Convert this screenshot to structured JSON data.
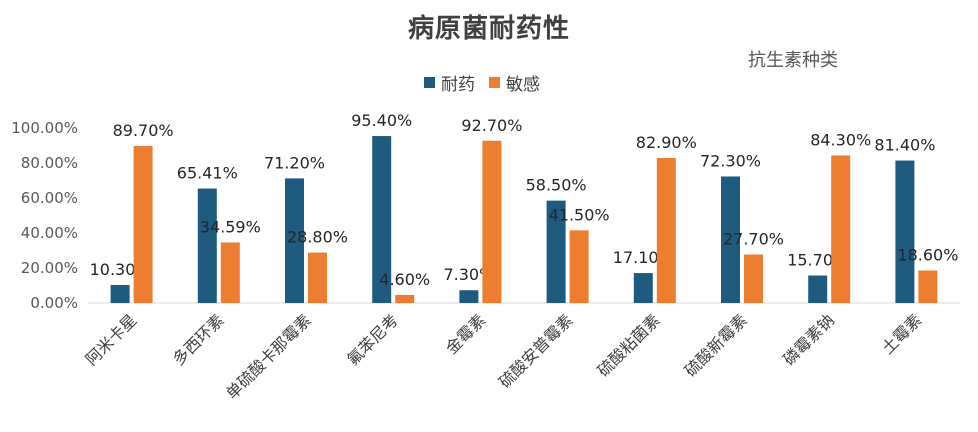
{
  "chart_data": {
    "type": "bar",
    "title": "病原菌耐药性",
    "subtitle": "抗生素种类",
    "categories": [
      "阿米卡星",
      "多西环素",
      "单硫酸卡那霉素",
      "氟苯尼考",
      "金霉素",
      "硫酸安普霉素",
      "硫酸粘菌素",
      "硫酸新霉素",
      "磷霉素钠",
      "土霉素"
    ],
    "series": [
      {
        "name": "耐药",
        "color": "#1f5b7f",
        "values": [
          10.3,
          65.41,
          71.2,
          95.4,
          7.3,
          58.5,
          17.1,
          72.3,
          15.7,
          81.4
        ],
        "labels": [
          "10.30%",
          "65.41%",
          "71.20%",
          "95.40%",
          "7.30%",
          "58.50%",
          "17.10%",
          "72.30%",
          "15.70%",
          "81.40%"
        ]
      },
      {
        "name": "敏感",
        "color": "#ed7d31",
        "values": [
          89.7,
          34.59,
          28.8,
          4.6,
          92.7,
          41.5,
          82.9,
          27.7,
          84.3,
          18.6
        ],
        "labels": [
          "89.70%",
          "34.59%",
          "28.80%",
          "4.60%",
          "92.70%",
          "41.50%",
          "82.90%",
          "27.70%",
          "84.30%",
          "18.60%"
        ]
      }
    ],
    "ylim": [
      0,
      100
    ],
    "yticks": [
      0,
      20,
      40,
      60,
      80,
      100
    ],
    "ytick_labels": [
      "0.00%",
      "20.00%",
      "40.00%",
      "60.00%",
      "80.00%",
      "100.00%"
    ],
    "grid": false,
    "legend_position": "top-center"
  }
}
